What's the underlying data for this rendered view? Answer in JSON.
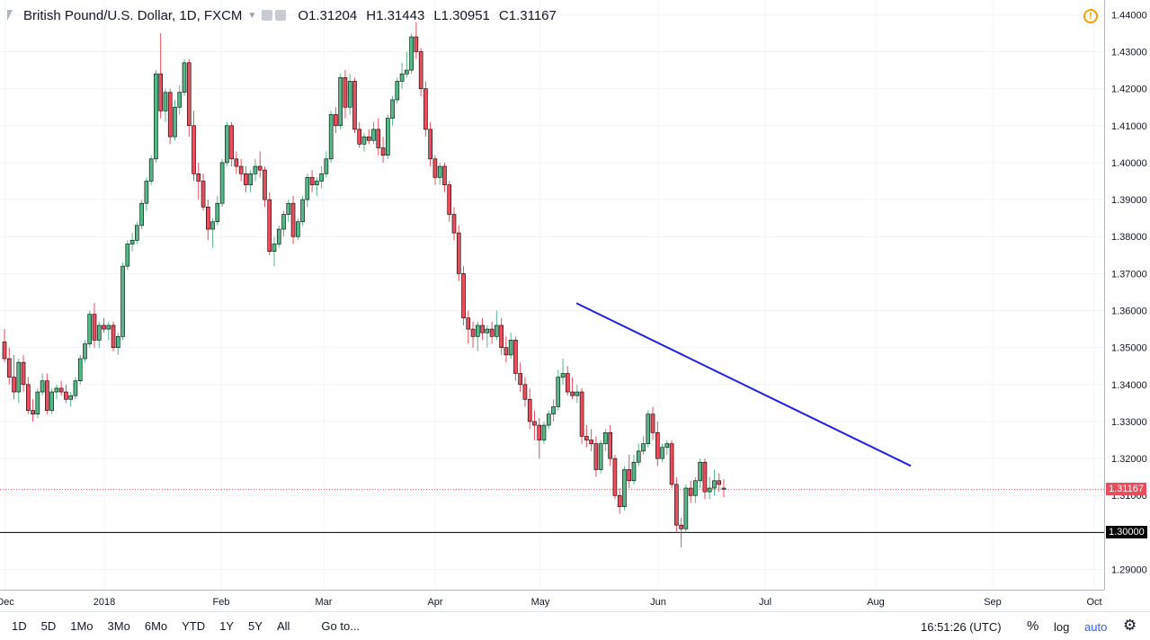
{
  "legend": {
    "symbol": "British Pound/U.S. Dollar, 1D, FXCM",
    "open_label": "O",
    "open": "1.31204",
    "high_label": "H",
    "high": "1.31443",
    "low_label": "L",
    "low": "1.30951",
    "close_label": "C",
    "close": "1.31167"
  },
  "bottom_bar": {
    "ranges": [
      "1D",
      "5D",
      "1Mo",
      "3Mo",
      "6Mo",
      "YTD",
      "1Y",
      "5Y",
      "All"
    ],
    "goto": "Go to...",
    "clock": "16:51:26 (UTC)",
    "percent": "%",
    "log": "log",
    "auto": "auto"
  },
  "colors": {
    "up": "#53b987",
    "down": "#eb4d5c",
    "trendline": "#1e1ee6",
    "last_price": "#eb4d5c",
    "level_line": "#000000"
  },
  "icons": [
    "bar-symbol-icon",
    "chevron-down-icon",
    "alert-clock-icon",
    "settings-gear-icon"
  ],
  "chart_data": {
    "type": "candlestick",
    "y_range": [
      1.286,
      1.443
    ],
    "y_ticks": [
      "1.44000",
      "1.43000",
      "1.42000",
      "1.41000",
      "1.40000",
      "1.39000",
      "1.38000",
      "1.37000",
      "1.36000",
      "1.35000",
      "1.34000",
      "1.33000",
      "1.32000",
      "1.31000",
      "1.30000",
      "1.29000"
    ],
    "x_labels": [
      "Dec",
      "2018",
      "Feb",
      "Mar",
      "Apr",
      "May",
      "Jun",
      "Jul",
      "Aug",
      "Sep",
      "Oct"
    ],
    "last_price": "1.31167",
    "level_price": "1.30000",
    "trendline": [
      [
        0,
        1.362
      ],
      [
        1,
        1.318
      ]
    ],
    "candles": [
      [
        1.3515,
        1.355,
        1.346,
        1.347
      ],
      [
        1.347,
        1.35,
        1.34,
        1.342
      ],
      [
        1.342,
        1.348,
        1.336,
        1.338
      ],
      [
        1.338,
        1.347,
        1.335,
        1.346
      ],
      [
        1.346,
        1.348,
        1.338,
        1.34
      ],
      [
        1.34,
        1.342,
        1.332,
        1.333
      ],
      [
        1.333,
        1.336,
        1.33,
        1.332
      ],
      [
        1.332,
        1.339,
        1.331,
        1.338
      ],
      [
        1.338,
        1.343,
        1.337,
        1.341
      ],
      [
        1.341,
        1.343,
        1.332,
        1.333
      ],
      [
        1.333,
        1.339,
        1.332,
        1.338
      ],
      [
        1.338,
        1.34,
        1.336,
        1.339
      ],
      [
        1.339,
        1.341,
        1.337,
        1.338
      ],
      [
        1.338,
        1.34,
        1.335,
        1.336
      ],
      [
        1.336,
        1.338,
        1.334,
        1.337
      ],
      [
        1.337,
        1.342,
        1.336,
        1.341
      ],
      [
        1.341,
        1.348,
        1.34,
        1.347
      ],
      [
        1.347,
        1.352,
        1.346,
        1.351
      ],
      [
        1.351,
        1.36,
        1.35,
        1.359
      ],
      [
        1.359,
        1.362,
        1.35,
        1.352
      ],
      [
        1.352,
        1.357,
        1.35,
        1.356
      ],
      [
        1.356,
        1.358,
        1.354,
        1.355
      ],
      [
        1.355,
        1.357,
        1.352,
        1.356
      ],
      [
        1.356,
        1.357,
        1.349,
        1.35
      ],
      [
        1.35,
        1.354,
        1.348,
        1.353
      ],
      [
        1.353,
        1.373,
        1.352,
        1.372
      ],
      [
        1.372,
        1.379,
        1.371,
        1.378
      ],
      [
        1.378,
        1.381,
        1.376,
        1.379
      ],
      [
        1.379,
        1.384,
        1.378,
        1.383
      ],
      [
        1.383,
        1.39,
        1.382,
        1.389
      ],
      [
        1.389,
        1.396,
        1.387,
        1.395
      ],
      [
        1.395,
        1.402,
        1.394,
        1.401
      ],
      [
        1.401,
        1.425,
        1.4,
        1.424
      ],
      [
        1.424,
        1.435,
        1.412,
        1.414
      ],
      [
        1.414,
        1.42,
        1.411,
        1.419
      ],
      [
        1.419,
        1.42,
        1.405,
        1.407
      ],
      [
        1.407,
        1.417,
        1.406,
        1.415
      ],
      [
        1.415,
        1.421,
        1.413,
        1.419
      ],
      [
        1.419,
        1.428,
        1.418,
        1.427
      ],
      [
        1.427,
        1.428,
        1.407,
        1.41
      ],
      [
        1.41,
        1.414,
        1.395,
        1.397
      ],
      [
        1.397,
        1.4,
        1.39,
        1.395
      ],
      [
        1.395,
        1.397,
        1.387,
        1.388
      ],
      [
        1.388,
        1.39,
        1.379,
        1.382
      ],
      [
        1.382,
        1.385,
        1.377,
        1.384
      ],
      [
        1.384,
        1.391,
        1.383,
        1.389
      ],
      [
        1.389,
        1.401,
        1.388,
        1.4
      ],
      [
        1.4,
        1.411,
        1.399,
        1.41
      ],
      [
        1.41,
        1.411,
        1.399,
        1.401
      ],
      [
        1.401,
        1.403,
        1.397,
        1.399
      ],
      [
        1.399,
        1.401,
        1.395,
        1.397
      ],
      [
        1.397,
        1.399,
        1.392,
        1.394
      ],
      [
        1.394,
        1.398,
        1.392,
        1.397
      ],
      [
        1.397,
        1.401,
        1.395,
        1.399
      ],
      [
        1.399,
        1.403,
        1.396,
        1.398
      ],
      [
        1.398,
        1.399,
        1.388,
        1.39
      ],
      [
        1.39,
        1.392,
        1.375,
        1.376
      ],
      [
        1.376,
        1.38,
        1.372,
        1.378
      ],
      [
        1.378,
        1.383,
        1.377,
        1.382
      ],
      [
        1.382,
        1.387,
        1.38,
        1.386
      ],
      [
        1.386,
        1.39,
        1.384,
        1.389
      ],
      [
        1.389,
        1.391,
        1.378,
        1.38
      ],
      [
        1.38,
        1.385,
        1.379,
        1.384
      ],
      [
        1.384,
        1.391,
        1.383,
        1.39
      ],
      [
        1.39,
        1.397,
        1.388,
        1.396
      ],
      [
        1.396,
        1.398,
        1.392,
        1.394
      ],
      [
        1.394,
        1.396,
        1.391,
        1.395
      ],
      [
        1.395,
        1.399,
        1.393,
        1.397
      ],
      [
        1.397,
        1.403,
        1.396,
        1.401
      ],
      [
        1.401,
        1.414,
        1.4,
        1.413
      ],
      [
        1.413,
        1.415,
        1.408,
        1.41
      ],
      [
        1.41,
        1.424,
        1.409,
        1.423
      ],
      [
        1.423,
        1.425,
        1.412,
        1.415
      ],
      [
        1.415,
        1.424,
        1.413,
        1.422
      ],
      [
        1.422,
        1.423,
        1.408,
        1.409
      ],
      [
        1.409,
        1.411,
        1.404,
        1.405
      ],
      [
        1.405,
        1.408,
        1.403,
        1.407
      ],
      [
        1.407,
        1.409,
        1.405,
        1.406
      ],
      [
        1.406,
        1.411,
        1.405,
        1.409
      ],
      [
        1.409,
        1.412,
        1.402,
        1.404
      ],
      [
        1.404,
        1.407,
        1.4,
        1.402
      ],
      [
        1.402,
        1.413,
        1.401,
        1.412
      ],
      [
        1.412,
        1.418,
        1.41,
        1.417
      ],
      [
        1.417,
        1.423,
        1.416,
        1.422
      ],
      [
        1.422,
        1.427,
        1.42,
        1.424
      ],
      [
        1.424,
        1.43,
        1.423,
        1.425
      ],
      [
        1.425,
        1.435,
        1.424,
        1.434
      ],
      [
        1.434,
        1.438,
        1.428,
        1.43
      ],
      [
        1.43,
        1.431,
        1.418,
        1.42
      ],
      [
        1.42,
        1.422,
        1.407,
        1.409
      ],
      [
        1.409,
        1.411,
        1.399,
        1.401
      ],
      [
        1.401,
        1.402,
        1.394,
        1.396
      ],
      [
        1.396,
        1.4,
        1.394,
        1.399
      ],
      [
        1.399,
        1.4,
        1.392,
        1.394
      ],
      [
        1.394,
        1.395,
        1.384,
        1.386
      ],
      [
        1.386,
        1.388,
        1.379,
        1.381
      ],
      [
        1.381,
        1.383,
        1.368,
        1.37
      ],
      [
        1.37,
        1.372,
        1.356,
        1.358
      ],
      [
        1.358,
        1.36,
        1.351,
        1.355
      ],
      [
        1.355,
        1.357,
        1.35,
        1.353
      ],
      [
        1.353,
        1.357,
        1.349,
        1.356
      ],
      [
        1.356,
        1.358,
        1.352,
        1.354
      ],
      [
        1.354,
        1.356,
        1.35,
        1.355
      ],
      [
        1.355,
        1.357,
        1.351,
        1.353
      ],
      [
        1.353,
        1.36,
        1.352,
        1.356
      ],
      [
        1.356,
        1.358,
        1.348,
        1.35
      ],
      [
        1.35,
        1.353,
        1.346,
        1.348
      ],
      [
        1.348,
        1.354,
        1.347,
        1.352
      ],
      [
        1.352,
        1.353,
        1.341,
        1.343
      ],
      [
        1.343,
        1.346,
        1.338,
        1.34
      ],
      [
        1.34,
        1.342,
        1.334,
        1.336
      ],
      [
        1.336,
        1.339,
        1.328,
        1.33
      ],
      [
        1.33,
        1.333,
        1.325,
        1.329
      ],
      [
        1.329,
        1.331,
        1.32,
        1.325
      ],
      [
        1.325,
        1.33,
        1.324,
        1.329
      ],
      [
        1.329,
        1.333,
        1.328,
        1.332
      ],
      [
        1.332,
        1.336,
        1.33,
        1.334
      ],
      [
        1.334,
        1.344,
        1.333,
        1.342
      ],
      [
        1.342,
        1.347,
        1.34,
        1.343
      ],
      [
        1.343,
        1.345,
        1.337,
        1.338
      ],
      [
        1.338,
        1.342,
        1.336,
        1.337
      ],
      [
        1.337,
        1.34,
        1.335,
        1.338
      ],
      [
        1.338,
        1.339,
        1.324,
        1.326
      ],
      [
        1.326,
        1.329,
        1.323,
        1.325
      ],
      [
        1.325,
        1.328,
        1.322,
        1.324
      ],
      [
        1.324,
        1.326,
        1.315,
        1.317
      ],
      [
        1.317,
        1.325,
        1.316,
        1.324
      ],
      [
        1.324,
        1.328,
        1.322,
        1.327
      ],
      [
        1.327,
        1.329,
        1.318,
        1.32
      ],
      [
        1.32,
        1.321,
        1.309,
        1.31
      ],
      [
        1.31,
        1.312,
        1.305,
        1.307
      ],
      [
        1.307,
        1.318,
        1.306,
        1.317
      ],
      [
        1.317,
        1.321,
        1.312,
        1.314
      ],
      [
        1.314,
        1.321,
        1.313,
        1.319
      ],
      [
        1.319,
        1.324,
        1.318,
        1.322
      ],
      [
        1.322,
        1.326,
        1.321,
        1.324
      ],
      [
        1.324,
        1.333,
        1.323,
        1.332
      ],
      [
        1.332,
        1.334,
        1.325,
        1.327
      ],
      [
        1.327,
        1.33,
        1.318,
        1.32
      ],
      [
        1.32,
        1.324,
        1.319,
        1.323
      ],
      [
        1.323,
        1.325,
        1.321,
        1.324
      ],
      [
        1.324,
        1.325,
        1.312,
        1.313
      ],
      [
        1.313,
        1.315,
        1.3,
        1.302
      ],
      [
        1.302,
        1.304,
        1.296,
        1.301
      ],
      [
        1.301,
        1.313,
        1.3,
        1.312
      ],
      [
        1.312,
        1.314,
        1.308,
        1.31
      ],
      [
        1.31,
        1.315,
        1.308,
        1.314
      ],
      [
        1.314,
        1.32,
        1.312,
        1.319
      ],
      [
        1.319,
        1.32,
        1.309,
        1.311
      ],
      [
        1.311,
        1.315,
        1.309,
        1.312
      ],
      [
        1.312,
        1.317,
        1.31,
        1.314
      ],
      [
        1.314,
        1.316,
        1.311,
        1.313
      ],
      [
        1.312,
        1.3144,
        1.3095,
        1.3117
      ]
    ]
  }
}
